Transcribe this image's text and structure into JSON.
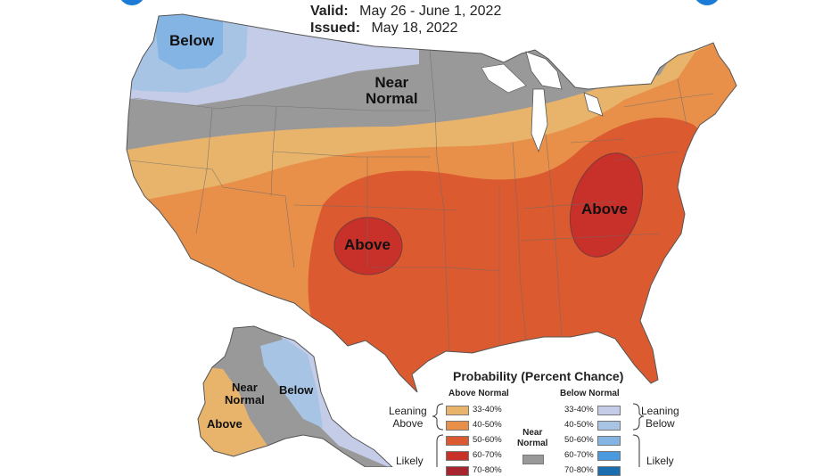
{
  "header": {
    "valid_label": "Valid:",
    "valid_value": "May 26 - June 1, 2022",
    "issued_label": "Issued:",
    "issued_value": "May 18, 2022"
  },
  "map_labels": {
    "conus_below": "Below",
    "conus_near_1": "Near",
    "conus_near_2": "Normal",
    "conus_above_west": "Above",
    "conus_above_east": "Above",
    "ak_near_1": "Near",
    "ak_near_2": "Normal",
    "ak_below": "Below",
    "ak_above": "Above"
  },
  "legend": {
    "title": "Probability (Percent Chance)",
    "above_header": "Above Normal",
    "below_header": "Below Normal",
    "near_1": "Near",
    "near_2": "Normal",
    "leaning_above_1": "Leaning",
    "leaning_above_2": "Above",
    "leaning_below_1": "Leaning",
    "leaning_below_2": "Below",
    "likely_above": "Likely",
    "likely_below": "Likely",
    "above_bins": [
      {
        "label": "33-40%",
        "color": "#e8b36a"
      },
      {
        "label": "40-50%",
        "color": "#e8904a"
      },
      {
        "label": "50-60%",
        "color": "#dc5a30"
      },
      {
        "label": "60-70%",
        "color": "#c8302a"
      },
      {
        "label": "70-80%",
        "color": "#a8242e"
      }
    ],
    "below_bins": [
      {
        "label": "33-40%",
        "color": "#c4cce8"
      },
      {
        "label": "40-50%",
        "color": "#a8c4e4"
      },
      {
        "label": "50-60%",
        "color": "#84b4e4"
      },
      {
        "label": "60-70%",
        "color": "#4a9ae0"
      },
      {
        "label": "70-80%",
        "color": "#1a6eb0"
      }
    ],
    "near_color": "#999999"
  }
}
